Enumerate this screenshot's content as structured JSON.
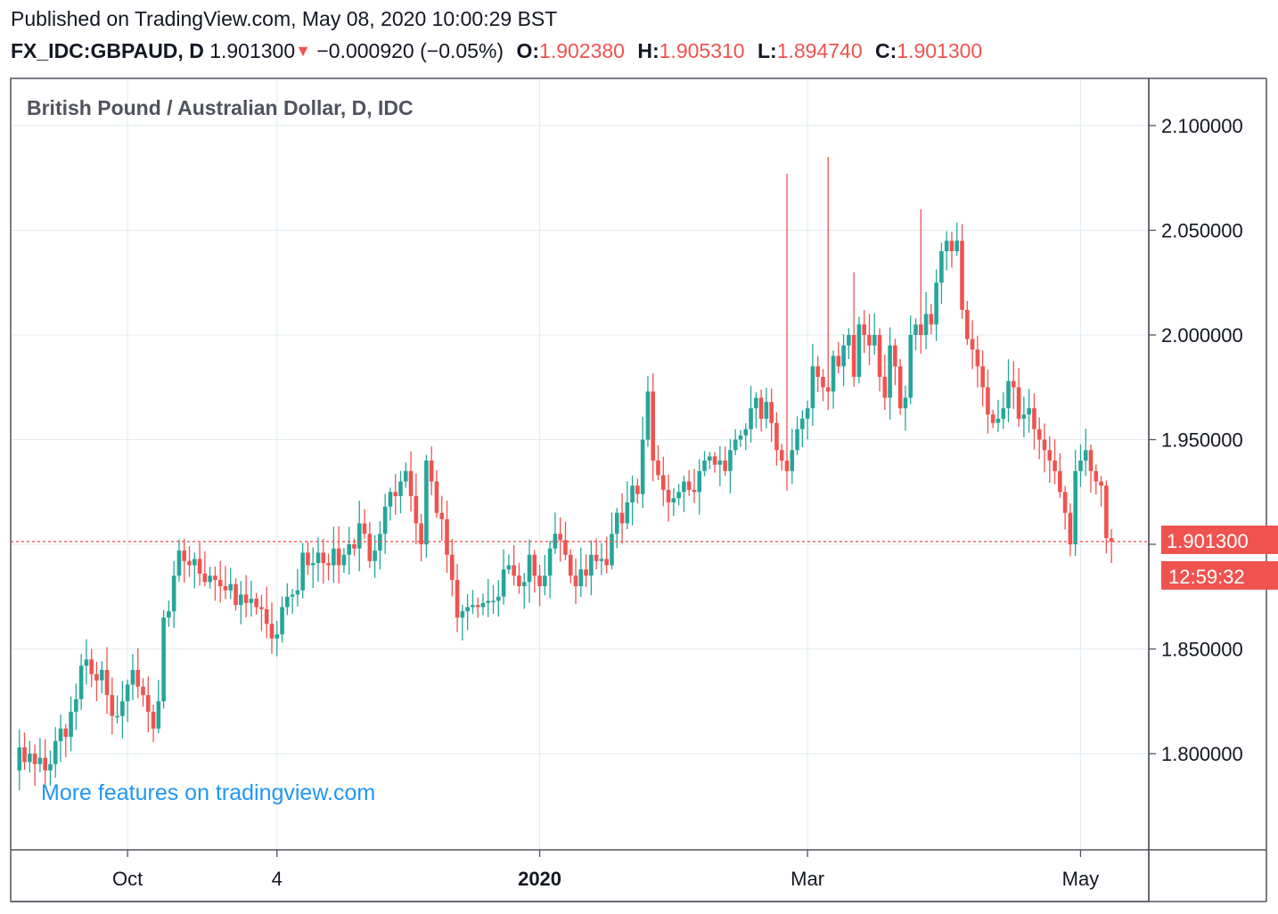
{
  "header": {
    "published": "Published on TradingView.com, May 08, 2020 10:00:29 BST",
    "symbol": "FX_IDC:GBPAUD, D",
    "last": "1.901300",
    "change": "−0.000920 (−0.05%)",
    "open_key": "O:",
    "open": "1.902380",
    "high_key": "H:",
    "high": "1.905310",
    "low_key": "L:",
    "low": "1.894740",
    "close_key": "C:",
    "close": "1.901300",
    "arrow_icon": "triangle-down-icon"
  },
  "chart_data": {
    "type": "candlestick",
    "title": "British Pound / Australian Dollar, D, IDC",
    "ylim": [
      1.755,
      2.11
    ],
    "y_ticks": [
      "2.100000",
      "2.050000",
      "2.000000",
      "1.950000",
      "1.900000",
      "1.850000",
      "1.800000"
    ],
    "y_tick_values": [
      2.1,
      2.05,
      2.0,
      1.95,
      1.9,
      1.85,
      1.8
    ],
    "x_ticks": [
      {
        "label": "Oct",
        "index": 22,
        "bold": false
      },
      {
        "label": "4",
        "index": 51,
        "bold": false
      },
      {
        "label": "2020",
        "index": 102,
        "bold": true
      },
      {
        "label": "Mar",
        "index": 154,
        "bold": false
      },
      {
        "label": "May",
        "index": 207,
        "bold": false
      }
    ],
    "last_price": 1.9013,
    "last_price_label": "1.901300",
    "countdown": "12:59:32",
    "grid": true,
    "colors": {
      "up": "#26a69a",
      "down": "#ef5350",
      "grid": "#e1ecf2",
      "axis": "#50535e"
    },
    "closes": [
      1.792,
      1.803,
      1.796,
      1.8,
      1.795,
      1.798,
      1.792,
      1.795,
      1.806,
      1.812,
      1.808,
      1.82,
      1.826,
      1.842,
      1.845,
      1.838,
      1.835,
      1.84,
      1.828,
      1.818,
      1.818,
      1.825,
      1.833,
      1.84,
      1.832,
      1.828,
      1.82,
      1.812,
      1.825,
      1.865,
      1.868,
      1.885,
      1.897,
      1.892,
      1.89,
      1.893,
      1.886,
      1.882,
      1.885,
      1.883,
      1.88,
      1.878,
      1.881,
      1.871,
      1.876,
      1.872,
      1.874,
      1.87,
      1.869,
      1.862,
      1.855,
      1.857,
      1.87,
      1.875,
      1.876,
      1.878,
      1.896,
      1.89,
      1.891,
      1.896,
      1.891,
      1.89,
      1.898,
      1.89,
      1.895,
      1.9,
      1.898,
      1.91,
      1.905,
      1.892,
      1.897,
      1.905,
      1.918,
      1.925,
      1.923,
      1.93,
      1.935,
      1.923,
      1.91,
      1.9,
      1.94,
      1.93,
      1.915,
      1.912,
      1.895,
      1.883,
      1.865,
      1.868,
      1.87,
      1.871,
      1.87,
      1.872,
      1.873,
      1.873,
      1.875,
      1.888,
      1.89,
      1.885,
      1.88,
      1.882,
      1.895,
      1.885,
      1.88,
      1.885,
      1.898,
      1.905,
      1.902,
      1.895,
      1.885,
      1.88,
      1.888,
      1.885,
      1.895,
      1.892,
      1.893,
      1.89,
      1.905,
      1.915,
      1.91,
      1.92,
      1.928,
      1.924,
      1.95,
      1.973,
      1.94,
      1.933,
      1.926,
      1.92,
      1.922,
      1.925,
      1.93,
      1.926,
      1.925,
      1.935,
      1.94,
      1.942,
      1.938,
      1.94,
      1.935,
      1.945,
      1.95,
      1.952,
      1.955,
      1.965,
      1.97,
      1.96,
      1.968,
      1.958,
      1.945,
      1.94,
      1.935,
      1.945,
      1.955,
      1.96,
      1.965,
      1.985,
      1.98,
      1.975,
      1.973,
      1.99,
      1.985,
      1.995,
      2.0,
      1.98,
      2.005,
      2.0,
      1.995,
      2.0,
      1.98,
      1.97,
      1.995,
      1.985,
      1.965,
      1.97,
      2.0,
      2.005,
      2.0,
      2.01,
      2.005,
      2.025,
      2.04,
      2.045,
      2.04,
      2.045,
      2.012,
      1.998,
      1.993,
      1.985,
      1.975,
      1.962,
      1.958,
      1.96,
      1.965,
      1.978,
      1.975,
      1.96,
      1.962,
      1.965,
      1.955,
      1.95,
      1.945,
      1.94,
      1.935,
      1.925,
      1.915,
      1.9,
      1.935,
      1.94,
      1.945,
      1.935,
      1.93,
      1.928,
      1.903,
      1.9013
    ]
  },
  "promo": {
    "text": "More features on tradingview.com"
  }
}
